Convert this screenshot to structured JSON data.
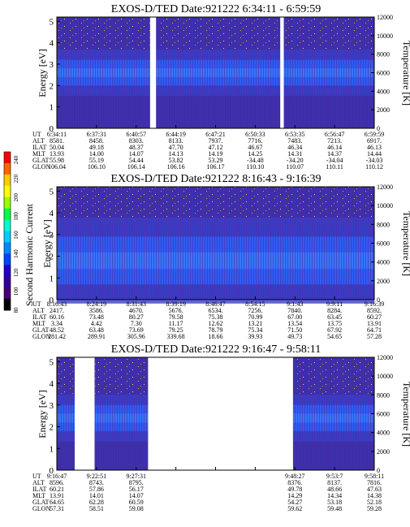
{
  "colors": {
    "bg_dark": "#3a1f8f",
    "bg_mid": "#3c2fa8",
    "band_blue": "#2f5cf0",
    "band_light": "#3f8cff",
    "speckle": "#ff9a3c",
    "gap": "#ffffff"
  },
  "colorbar": {
    "label": "Second Harmonic Current",
    "ticks": [
      "240",
      "220",
      "200",
      "180",
      "160",
      "140",
      "120",
      "100",
      "80"
    ],
    "colors": [
      "#ff0000",
      "#ff6600",
      "#ffcc00",
      "#ffff00",
      "#99ff00",
      "#00ff44",
      "#00ffcc",
      "#00ccff",
      "#0088ff",
      "#0044ff",
      "#2200cc",
      "#330099",
      "#440077",
      "#000000"
    ]
  },
  "row_labels": [
    "UT",
    "ALT",
    "ILAT",
    "MLT",
    "GLAT",
    "GLON"
  ],
  "panels": [
    {
      "title": "EXOS-D/TED   Date:921222   6:34:11 - 6:59:59",
      "ylabel_left": "Energy [eV]",
      "ylabel_right": "Temperature [K]",
      "yticks_left": [
        "0",
        "1",
        "2",
        "3",
        "4",
        "5"
      ],
      "yticks_right": [
        "0",
        "2000",
        "4000",
        "6000",
        "8000",
        "10000",
        "12000"
      ],
      "columns": [
        {
          "UT": "6:34:11",
          "ALT": "8581.",
          "ILAT": "50.04",
          "MLT": "13.93",
          "GLAT": "55.98",
          "GLON": "106.04"
        },
        {
          "UT": "6:37:31",
          "ALT": "8458.",
          "ILAT": "49.18",
          "MLT": "14.00",
          "GLAT": "55.19",
          "GLON": "106.10"
        },
        {
          "UT": "6:40:57",
          "ALT": "8303.",
          "ILAT": "48.37",
          "MLT": "14.07",
          "GLAT": "54.44",
          "GLON": "106.14"
        },
        {
          "UT": "6:44:19",
          "ALT": "8133.",
          "ILAT": "47.70",
          "MLT": "14.13",
          "GLAT": "53.82",
          "GLON": "106.16"
        },
        {
          "UT": "6:47:21",
          "ALT": "7937.",
          "ILAT": "47.12",
          "MLT": "14.19",
          "GLAT": "53.29",
          "GLON": "106.17"
        },
        {
          "UT": "6:50:33",
          "ALT": "7716.",
          "ILAT": "46.67",
          "MLT": "14.25",
          "GLAT": "-34.48",
          "GLON": "110.10"
        },
        {
          "UT": "6:53:35",
          "ALT": "7483.",
          "ILAT": "46.34",
          "MLT": "14.31",
          "GLAT": "-34.20",
          "GLON": "110.07"
        },
        {
          "UT": "6:56:47",
          "ALT": "7213.",
          "ILAT": "46.14",
          "MLT": "14.37",
          "GLAT": "-34.04",
          "GLON": "110.11"
        },
        {
          "UT": "6:59:59",
          "ALT": "6917.",
          "ILAT": "46.13",
          "MLT": "14.44",
          "GLAT": "-34.03",
          "GLON": "110.12"
        }
      ]
    },
    {
      "title": "EXOS-D/TED   Date:921222   8:16:43 - 9:16:39",
      "ylabel_left": "Energy [eV]",
      "ylabel_right": "Temperature [K]",
      "yticks_left": [
        "0",
        "1",
        "2",
        "3",
        "4",
        "5"
      ],
      "yticks_right": [
        "0",
        "2000",
        "4000",
        "6000",
        "8000",
        "10000",
        "12000"
      ],
      "columns": [
        {
          "UT": "8:16:43",
          "ALT": "2417.",
          "ILAT": "60.16",
          "MLT": "3.34",
          "GLAT": "48.52",
          "GLON": "281.42"
        },
        {
          "UT": "8:24:19",
          "ALT": "3586.",
          "ILAT": "73.48",
          "MLT": "4.42",
          "GLAT": "63.48",
          "GLON": "289.91"
        },
        {
          "UT": "8:31:43",
          "ALT": "4670.",
          "ILAT": "80.27",
          "MLT": "7.30",
          "GLAT": "73.69",
          "GLON": "305.96"
        },
        {
          "UT": "8:39:19",
          "ALT": "5676.",
          "ILAT": "79.58",
          "MLT": "11.17",
          "GLAT": "79.25",
          "GLON": "339.68"
        },
        {
          "UT": "8:46:47",
          "ALT": "6534.",
          "ILAT": "75.38",
          "MLT": "12.62",
          "GLAT": "78.79",
          "GLON": "18.66"
        },
        {
          "UT": "8:54:15",
          "ALT": "7256.",
          "ILAT": "70.99",
          "MLT": "13.21",
          "GLAT": "75.34",
          "GLON": "39.93"
        },
        {
          "UT": "9:1:43",
          "ALT": "7840.",
          "ILAT": "67.00",
          "MLT": "13.54",
          "GLAT": "71.50",
          "GLON": "49.73"
        },
        {
          "UT": "9:9:11",
          "ALT": "8284.",
          "ILAT": "63.45",
          "MLT": "13.75",
          "GLAT": "67.92",
          "GLON": "54.65"
        },
        {
          "UT": "9:16:39",
          "ALT": "8592.",
          "ILAT": "60.27",
          "MLT": "13.91",
          "GLAT": "64.71",
          "GLON": "57.28"
        }
      ]
    },
    {
      "title": "EXOS-D/TED   Date:921222   9:16:47 - 9:58:11",
      "ylabel_left": "Energy [eV]",
      "ylabel_right": "Temperature [K]",
      "yticks_left": [
        "0",
        "1",
        "2",
        "3",
        "4",
        "5"
      ],
      "yticks_right": [
        "0",
        "2000",
        "4000",
        "6000",
        "8000",
        "10000",
        "12000"
      ],
      "columns": [
        {
          "UT": "9:16:47",
          "ALT": "8596.",
          "ILAT": "60.21",
          "MLT": "13.91",
          "GLAT": "64.65",
          "GLON": "57.31"
        },
        {
          "UT": "9:22:51",
          "ALT": "8743.",
          "ILAT": "57.86",
          "MLT": "14.01",
          "GLAT": "62.28",
          "GLON": "58.51"
        },
        {
          "UT": "9:27:31",
          "ALT": "8795.",
          "ILAT": "56.17",
          "MLT": "14.07",
          "GLAT": "60.59",
          "GLON": "59.08"
        },
        {
          "UT": "",
          "ALT": "",
          "ILAT": "",
          "MLT": "",
          "GLAT": "",
          "GLON": ""
        },
        {
          "UT": "",
          "ALT": "",
          "ILAT": "",
          "MLT": "",
          "GLAT": "",
          "GLON": ""
        },
        {
          "UT": "",
          "ALT": "",
          "ILAT": "",
          "MLT": "",
          "GLAT": "",
          "GLON": ""
        },
        {
          "UT": "9:48:27",
          "ALT": "8376.",
          "ILAT": "49.78",
          "MLT": "14.29",
          "GLAT": "54.27",
          "GLON": "59.62"
        },
        {
          "UT": "9:53:7",
          "ALT": "8137.",
          "ILAT": "48.66",
          "MLT": "14.34",
          "GLAT": "53.18",
          "GLON": "59.48"
        },
        {
          "UT": "9:58:11",
          "ALT": "7816.",
          "ILAT": "47.63",
          "MLT": "14.38",
          "GLAT": "52.18",
          "GLON": "59.28"
        }
      ]
    }
  ],
  "chart_data": [
    {
      "type": "heatmap",
      "title": "EXOS-D/TED   Date:921222   6:34:11 - 6:59:59",
      "ylabel": "Energy [eV]",
      "ylabel_right": "Temperature [K]",
      "ylim": [
        0,
        5.2
      ],
      "ylim_right": [
        0,
        12000
      ],
      "x_ticks": [
        "6:34:11",
        "6:37:31",
        "6:40:57",
        "6:44:19",
        "6:47:21",
        "6:50:33",
        "6:53:35",
        "6:56:47",
        "6:59:59"
      ],
      "band_center_eV": 2.6,
      "band_halfwidth_eV": 0.6,
      "gaps": [
        [
          2.35,
          2.5
        ],
        [
          5.63,
          5.72
        ]
      ]
    },
    {
      "type": "heatmap",
      "title": "EXOS-D/TED   Date:921222   8:16:43 - 9:16:39",
      "ylabel": "Energy [eV]",
      "ylabel_right": "Temperature [K]",
      "ylim": [
        0,
        5.2
      ],
      "ylim_right": [
        0,
        12000
      ],
      "x_ticks": [
        "8:16:43",
        "8:24:19",
        "8:31:43",
        "8:39:19",
        "8:46:47",
        "8:54:15",
        "9:1:43",
        "9:9:11",
        "9:16:39"
      ],
      "band_center_eV": 1.8,
      "band_halfwidth_eV": 1.1,
      "gaps": []
    },
    {
      "type": "heatmap",
      "title": "EXOS-D/TED   Date:921222   9:16:47 - 9:58:11",
      "ylabel": "Energy [eV]",
      "ylabel_right": "Temperature [K]",
      "ylim": [
        0,
        5.2
      ],
      "ylim_right": [
        0,
        12000
      ],
      "x_ticks": [
        "9:16:47",
        "9:22:51",
        "9:27:31",
        "",
        "",
        "",
        "9:48:27",
        "9:53:7",
        "9:58:11"
      ],
      "band_center_eV": 2.4,
      "band_halfwidth_eV": 0.6,
      "gaps": [
        [
          0.45,
          0.95
        ],
        [
          2.3,
          5.95
        ]
      ]
    }
  ]
}
